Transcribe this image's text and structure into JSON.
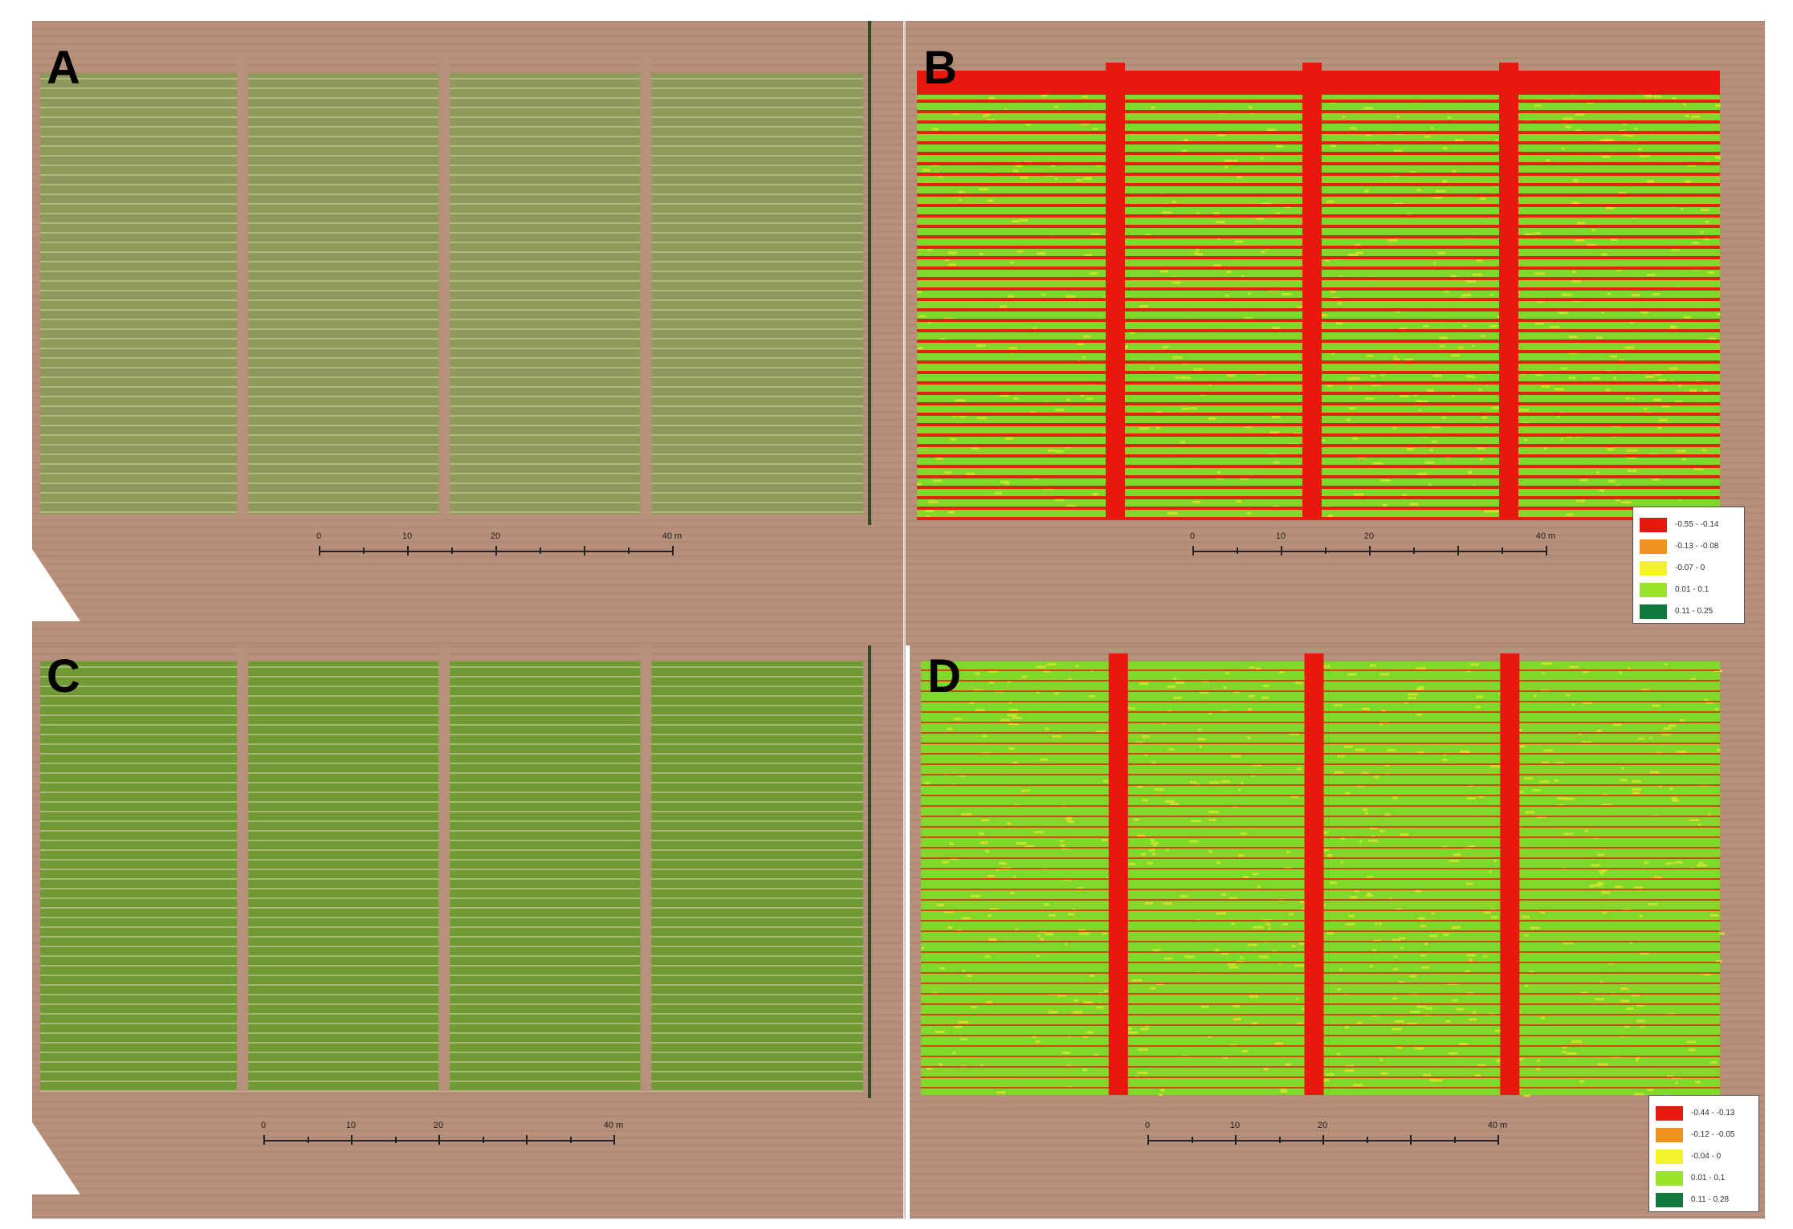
{
  "figure": {
    "panels": [
      {
        "letter": "A",
        "type": "rgb",
        "scale": {
          "ticks": [
            "0",
            "10",
            "20",
            "40 m"
          ]
        }
      },
      {
        "letter": "B",
        "type": "index",
        "scale": {
          "ticks": [
            "0",
            "10",
            "20",
            "40 m"
          ]
        },
        "legend": [
          {
            "label": "-0.55 - -0.14",
            "color": "#e8180f"
          },
          {
            "label": "-0.13 - -0.08",
            "color": "#f0921e"
          },
          {
            "label": "-0.07 - 0",
            "color": "#f2f22a"
          },
          {
            "label": "0.01 - 0.1",
            "color": "#9be32a"
          },
          {
            "label": "0.11 - 0.25",
            "color": "#0f7a3c"
          }
        ]
      },
      {
        "letter": "C",
        "type": "rgb",
        "scale": {
          "ticks": [
            "0",
            "10",
            "20",
            "40 m"
          ]
        }
      },
      {
        "letter": "D",
        "type": "index",
        "scale": {
          "ticks": [
            "0",
            "10",
            "20",
            "40 m"
          ]
        },
        "legend": [
          {
            "label": "-0.44 - -0.13",
            "color": "#e8180f"
          },
          {
            "label": "-0.12 - -0.05",
            "color": "#f0921e"
          },
          {
            "label": "-0.04 - 0",
            "color": "#f2f22a"
          },
          {
            "label": "0.01 - 0.1",
            "color": "#9be32a"
          },
          {
            "label": "0.11 - 0.28",
            "color": "#0f7a3c"
          }
        ]
      }
    ],
    "colors": {
      "soil": "#b8917c",
      "soil_dark": "#a27f6c",
      "crop_A": "#8f9a5a",
      "crop_C": "#6f9a35",
      "index_red": "#e8180f",
      "index_green": "#7fd82a"
    }
  }
}
